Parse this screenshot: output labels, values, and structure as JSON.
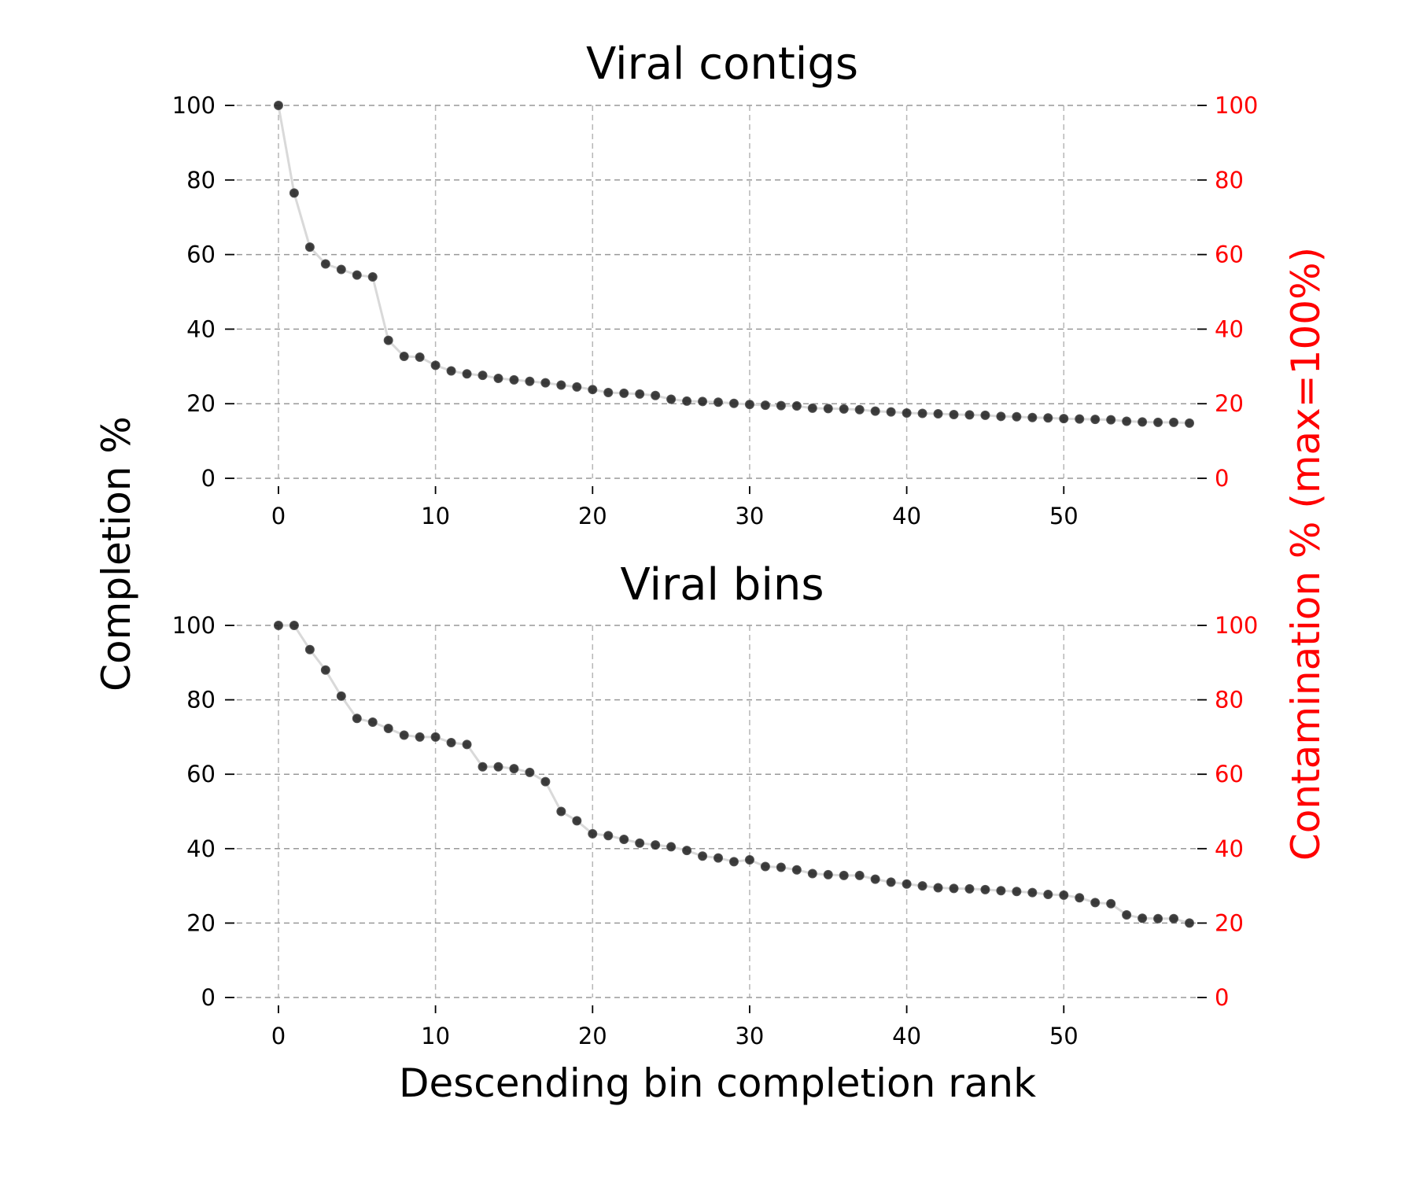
{
  "figure": {
    "ylabel_left": "Completion %",
    "ylabel_right": "Contamination % (max=100%)",
    "xlabel": "Descending bin completion rank",
    "colors": {
      "right_axis": "#ff0000",
      "points": "#1a1a1a",
      "line": "#d9d9d9",
      "grid": "#999999"
    }
  },
  "chart_data": [
    {
      "type": "line",
      "title": "Viral contigs",
      "xlabel": "",
      "ylabel": "Completion %",
      "y2label": "Contamination % (max=100%)",
      "xlim": [
        -1.5,
        58
      ],
      "ylim": [
        0,
        100
      ],
      "xticks": [
        0,
        10,
        20,
        30,
        40,
        50
      ],
      "yticks": [
        0,
        20,
        40,
        60,
        80,
        100
      ],
      "grid": true,
      "series": [
        {
          "x": [
            0,
            1,
            2,
            3,
            4,
            5,
            6,
            7,
            8,
            9,
            10,
            11,
            12,
            13,
            14,
            15,
            16,
            17,
            18,
            19,
            20,
            21,
            22,
            23,
            24,
            25,
            26,
            27,
            28,
            29,
            30,
            31,
            32,
            33,
            34,
            35,
            36,
            37,
            38,
            39,
            40,
            41,
            42,
            43,
            44,
            45,
            46,
            47,
            48,
            49,
            50,
            51,
            52,
            53,
            54,
            55,
            56,
            57,
            58
          ],
          "values": [
            100,
            76.5,
            62,
            57.5,
            56,
            54.5,
            54,
            37,
            32.7,
            32.5,
            30.3,
            28.8,
            28,
            27.6,
            26.8,
            26.4,
            26,
            25.6,
            25,
            24.5,
            23.8,
            23,
            22.8,
            22.6,
            22.2,
            21.2,
            20.7,
            20.6,
            20.4,
            20.1,
            19.8,
            19.6,
            19.5,
            19.4,
            18.8,
            18.7,
            18.6,
            18.4,
            18,
            17.8,
            17.5,
            17.4,
            17.3,
            17.1,
            17,
            16.9,
            16.6,
            16.5,
            16.3,
            16.2,
            16,
            15.9,
            15.8,
            15.7,
            15.3,
            15.1,
            15,
            15,
            14.8
          ]
        }
      ]
    },
    {
      "type": "line",
      "title": "Viral bins",
      "xlabel": "Descending bin completion rank",
      "ylabel": "Completion %",
      "y2label": "Contamination % (max=100%)",
      "xlim": [
        -1.5,
        58
      ],
      "ylim": [
        0,
        100
      ],
      "xticks": [
        0,
        10,
        20,
        30,
        40,
        50
      ],
      "yticks": [
        0,
        20,
        40,
        60,
        80,
        100
      ],
      "grid": true,
      "series": [
        {
          "x": [
            0,
            1,
            2,
            3,
            4,
            5,
            6,
            7,
            8,
            9,
            10,
            11,
            12,
            13,
            14,
            15,
            16,
            17,
            18,
            19,
            20,
            21,
            22,
            23,
            24,
            25,
            26,
            27,
            28,
            29,
            30,
            31,
            32,
            33,
            34,
            35,
            36,
            37,
            38,
            39,
            40,
            41,
            42,
            43,
            44,
            45,
            46,
            47,
            48,
            49,
            50,
            51,
            52,
            53,
            54,
            55,
            56,
            57,
            58
          ],
          "values": [
            100,
            100,
            93.5,
            88,
            81,
            75,
            74,
            72.3,
            70.5,
            70,
            70,
            68.5,
            68,
            62,
            62,
            61.5,
            60.5,
            58,
            50,
            47.5,
            44,
            43.5,
            42.5,
            41.5,
            41,
            40.5,
            39.5,
            38,
            37.5,
            36.5,
            37,
            35.2,
            35,
            34.3,
            33.3,
            33,
            32.8,
            32.8,
            31.8,
            31,
            30.5,
            30,
            29.5,
            29.3,
            29.2,
            29,
            28.7,
            28.5,
            28.2,
            27.7,
            27.5,
            26.8,
            25.5,
            25.2,
            22.2,
            21.3,
            21.2,
            21.2,
            20
          ]
        }
      ]
    }
  ]
}
